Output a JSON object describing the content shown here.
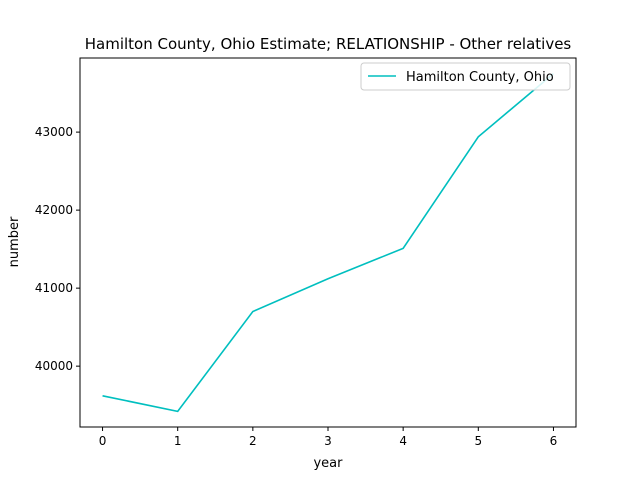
{
  "chart_data": {
    "type": "line",
    "title": "Hamilton County, Ohio Estimate; RELATIONSHIP - Other relatives",
    "xlabel": "year",
    "ylabel": "number",
    "x": [
      0,
      1,
      2,
      3,
      4,
      5,
      6
    ],
    "series": [
      {
        "name": "Hamilton County, Ohio",
        "color": "#00bfbf",
        "values": [
          39620,
          39420,
          40700,
          41120,
          41510,
          42940,
          43750
        ]
      }
    ],
    "xlim": [
      -0.3,
      6.3
    ],
    "ylim": [
      39220,
      43950
    ],
    "xticks": [
      0,
      1,
      2,
      3,
      4,
      5,
      6
    ],
    "yticks": [
      40000,
      41000,
      42000,
      43000
    ],
    "grid": false,
    "legend_position": "upper right"
  }
}
